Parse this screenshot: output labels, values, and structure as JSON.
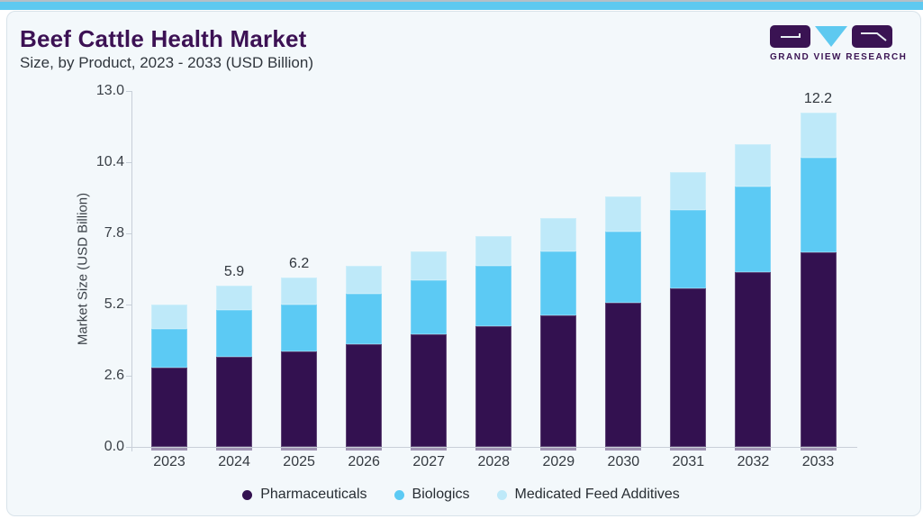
{
  "page": {
    "top_strip_color": "#5ec9f0",
    "card_background": "#f3f8fb"
  },
  "header": {
    "title": "Beef Cattle Health Market",
    "subtitle": "Size, by Product, 2023 - 2033 (USD Billion)",
    "title_color": "#3c1154"
  },
  "logo": {
    "text": "GRAND VIEW RESEARCH",
    "block_color": "#3a1353",
    "triangle_color": "#5ec9f0"
  },
  "chart_data": {
    "type": "bar",
    "stacked": true,
    "title": "Beef Cattle Health Market Size, by Product, 2023 - 2033 (USD Billion)",
    "xlabel": "",
    "ylabel": "Market Size (USD Billion)",
    "ylim": [
      0,
      13
    ],
    "ytick_labels": [
      "0.0",
      "2.6",
      "5.2",
      "7.8",
      "10.4",
      "13.0"
    ],
    "ytick_values": [
      0,
      2.6,
      5.2,
      7.8,
      10.4,
      13
    ],
    "grid": false,
    "legend_position": "bottom",
    "categories": [
      "2023",
      "2024",
      "2025",
      "2026",
      "2027",
      "2028",
      "2029",
      "2030",
      "2031",
      "2032",
      "2033"
    ],
    "series": [
      {
        "name": "Pharmaceuticals",
        "color": "#331150",
        "values": [
          2.9,
          3.3,
          3.5,
          3.75,
          4.1,
          4.4,
          4.8,
          5.25,
          5.8,
          6.4,
          7.1
        ]
      },
      {
        "name": "Biologics",
        "color": "#5ccaf4",
        "values": [
          1.4,
          1.7,
          1.7,
          1.85,
          2.0,
          2.2,
          2.35,
          2.6,
          2.85,
          3.1,
          3.45
        ]
      },
      {
        "name": "Medicated Feed Additives",
        "color": "#bee9f9",
        "values": [
          0.9,
          0.9,
          1.0,
          1.0,
          1.05,
          1.1,
          1.2,
          1.3,
          1.4,
          1.55,
          1.65
        ]
      }
    ],
    "total_labels": [
      "",
      "5.9",
      "6.2",
      "",
      "",
      "",
      "",
      "",
      "",
      "",
      "12.2"
    ]
  }
}
